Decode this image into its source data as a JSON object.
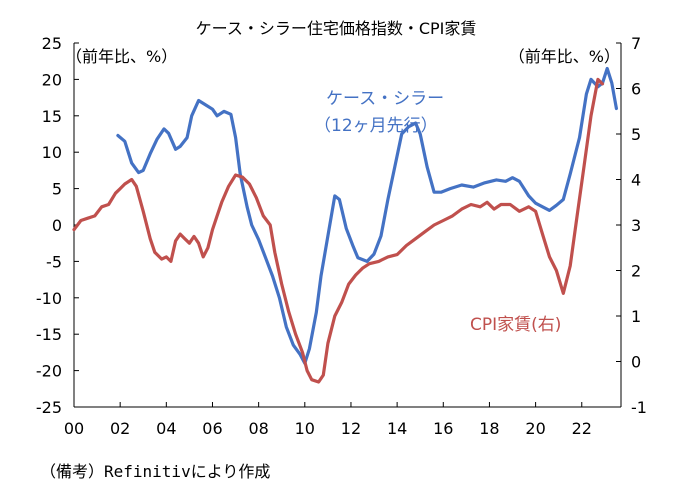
{
  "chart_data": {
    "type": "line",
    "title": "ケース・シラー住宅価格指数・CPI家賃",
    "left_unit": "（前年比、%）",
    "right_unit": "（前年比、%）",
    "x_ticks": [
      "00",
      "02",
      "04",
      "06",
      "08",
      "10",
      "12",
      "14",
      "16",
      "18",
      "20",
      "22"
    ],
    "x_tick_years": [
      2000,
      2002,
      2004,
      2006,
      2008,
      2010,
      2012,
      2014,
      2016,
      2018,
      2020,
      2022
    ],
    "xlim": [
      2000,
      2023.7
    ],
    "y_left": {
      "ticks": [
        "25",
        "20",
        "15",
        "10",
        "5",
        "0",
        "-5",
        "-10",
        "-15",
        "-20",
        "-25"
      ],
      "ylim": [
        -25,
        25
      ]
    },
    "y_right": {
      "ticks": [
        "7",
        "6",
        "5",
        "4",
        "3",
        "2",
        "1",
        "0",
        "-1"
      ],
      "ylim": [
        -1,
        7
      ]
    },
    "series": [
      {
        "name": "ケース・シラー",
        "label_line1": "ケース・シラー",
        "label_line2": "（12ヶ月先行）",
        "axis": "left",
        "color": "#4472C4",
        "points": [
          [
            2001.9,
            12.3
          ],
          [
            2002.2,
            11.5
          ],
          [
            2002.5,
            8.5
          ],
          [
            2002.8,
            7.2
          ],
          [
            2003.0,
            7.5
          ],
          [
            2003.3,
            9.8
          ],
          [
            2003.6,
            11.8
          ],
          [
            2003.9,
            13.2
          ],
          [
            2004.1,
            12.6
          ],
          [
            2004.4,
            10.4
          ],
          [
            2004.6,
            10.8
          ],
          [
            2004.9,
            12.0
          ],
          [
            2005.1,
            15.0
          ],
          [
            2005.4,
            17.1
          ],
          [
            2005.7,
            16.5
          ],
          [
            2006.0,
            15.9
          ],
          [
            2006.2,
            15.0
          ],
          [
            2006.5,
            15.6
          ],
          [
            2006.8,
            15.2
          ],
          [
            2007.0,
            12.0
          ],
          [
            2007.2,
            7.0
          ],
          [
            2007.5,
            2.5
          ],
          [
            2007.7,
            0.0
          ],
          [
            2008.0,
            -2.0
          ],
          [
            2008.3,
            -4.5
          ],
          [
            2008.6,
            -7.0
          ],
          [
            2008.9,
            -10.0
          ],
          [
            2009.2,
            -14.0
          ],
          [
            2009.5,
            -16.5
          ],
          [
            2009.8,
            -17.8
          ],
          [
            2010.0,
            -19.0
          ],
          [
            2010.2,
            -17.0
          ],
          [
            2010.5,
            -12.0
          ],
          [
            2010.7,
            -7.0
          ],
          [
            2011.0,
            -1.5
          ],
          [
            2011.3,
            4.0
          ],
          [
            2011.5,
            3.5
          ],
          [
            2011.8,
            -0.5
          ],
          [
            2012.1,
            -3.0
          ],
          [
            2012.3,
            -4.5
          ],
          [
            2012.7,
            -5.0
          ],
          [
            2013.0,
            -4.0
          ],
          [
            2013.3,
            -1.5
          ],
          [
            2013.6,
            3.5
          ],
          [
            2013.9,
            8.0
          ],
          [
            2014.2,
            12.5
          ],
          [
            2014.5,
            13.5
          ],
          [
            2014.8,
            14.0
          ],
          [
            2015.0,
            12.5
          ],
          [
            2015.3,
            8.0
          ],
          [
            2015.6,
            4.5
          ],
          [
            2015.9,
            4.5
          ],
          [
            2016.3,
            5.0
          ],
          [
            2016.8,
            5.5
          ],
          [
            2017.3,
            5.2
          ],
          [
            2017.8,
            5.8
          ],
          [
            2018.3,
            6.2
          ],
          [
            2018.7,
            6.0
          ],
          [
            2019.0,
            6.5
          ],
          [
            2019.3,
            6.0
          ],
          [
            2019.7,
            4.0
          ],
          [
            2020.0,
            3.0
          ],
          [
            2020.3,
            2.5
          ],
          [
            2020.6,
            2.0
          ],
          [
            2020.9,
            2.7
          ],
          [
            2021.2,
            3.5
          ],
          [
            2021.5,
            7.0
          ],
          [
            2021.9,
            12.0
          ],
          [
            2022.2,
            18.0
          ],
          [
            2022.4,
            20.0
          ],
          [
            2022.7,
            19.0
          ],
          [
            2022.9,
            19.5
          ],
          [
            2023.1,
            21.5
          ],
          [
            2023.3,
            19.5
          ],
          [
            2023.5,
            16.0
          ]
        ]
      },
      {
        "name": "CPI家賃",
        "label": "CPI家賃(右)",
        "axis": "right",
        "color": "#C0504D",
        "points": [
          [
            2000.0,
            2.9
          ],
          [
            2000.3,
            3.1
          ],
          [
            2000.6,
            3.15
          ],
          [
            2000.9,
            3.2
          ],
          [
            2001.2,
            3.4
          ],
          [
            2001.5,
            3.45
          ],
          [
            2001.8,
            3.7
          ],
          [
            2002.0,
            3.8
          ],
          [
            2002.2,
            3.9
          ],
          [
            2002.5,
            4.0
          ],
          [
            2002.7,
            3.85
          ],
          [
            2003.0,
            3.3
          ],
          [
            2003.3,
            2.7
          ],
          [
            2003.5,
            2.4
          ],
          [
            2003.8,
            2.25
          ],
          [
            2004.0,
            2.3
          ],
          [
            2004.2,
            2.2
          ],
          [
            2004.4,
            2.65
          ],
          [
            2004.6,
            2.8
          ],
          [
            2004.8,
            2.7
          ],
          [
            2005.0,
            2.6
          ],
          [
            2005.2,
            2.75
          ],
          [
            2005.4,
            2.6
          ],
          [
            2005.6,
            2.3
          ],
          [
            2005.8,
            2.5
          ],
          [
            2006.0,
            2.9
          ],
          [
            2006.2,
            3.2
          ],
          [
            2006.4,
            3.5
          ],
          [
            2006.7,
            3.85
          ],
          [
            2007.0,
            4.1
          ],
          [
            2007.3,
            4.05
          ],
          [
            2007.6,
            3.9
          ],
          [
            2007.9,
            3.6
          ],
          [
            2008.2,
            3.2
          ],
          [
            2008.5,
            3.0
          ],
          [
            2008.7,
            2.4
          ],
          [
            2009.0,
            1.7
          ],
          [
            2009.3,
            1.1
          ],
          [
            2009.6,
            0.6
          ],
          [
            2009.9,
            0.2
          ],
          [
            2010.1,
            -0.2
          ],
          [
            2010.3,
            -0.4
          ],
          [
            2010.6,
            -0.45
          ],
          [
            2010.8,
            -0.3
          ],
          [
            2011.0,
            0.4
          ],
          [
            2011.3,
            1.0
          ],
          [
            2011.6,
            1.3
          ],
          [
            2011.9,
            1.7
          ],
          [
            2012.2,
            1.9
          ],
          [
            2012.5,
            2.05
          ],
          [
            2012.8,
            2.15
          ],
          [
            2013.2,
            2.2
          ],
          [
            2013.6,
            2.3
          ],
          [
            2014.0,
            2.35
          ],
          [
            2014.4,
            2.55
          ],
          [
            2014.8,
            2.7
          ],
          [
            2015.2,
            2.85
          ],
          [
            2015.6,
            3.0
          ],
          [
            2016.0,
            3.1
          ],
          [
            2016.4,
            3.2
          ],
          [
            2016.8,
            3.35
          ],
          [
            2017.2,
            3.45
          ],
          [
            2017.6,
            3.4
          ],
          [
            2017.9,
            3.5
          ],
          [
            2018.2,
            3.35
          ],
          [
            2018.5,
            3.45
          ],
          [
            2018.9,
            3.45
          ],
          [
            2019.3,
            3.3
          ],
          [
            2019.7,
            3.4
          ],
          [
            2020.0,
            3.3
          ],
          [
            2020.3,
            2.8
          ],
          [
            2020.6,
            2.3
          ],
          [
            2020.9,
            2.0
          ],
          [
            2021.2,
            1.5
          ],
          [
            2021.5,
            2.1
          ],
          [
            2021.8,
            3.2
          ],
          [
            2022.1,
            4.3
          ],
          [
            2022.4,
            5.4
          ],
          [
            2022.7,
            6.2
          ],
          [
            2022.9,
            6.1
          ]
        ]
      }
    ]
  },
  "note": "（備考）Refinitivにより作成"
}
